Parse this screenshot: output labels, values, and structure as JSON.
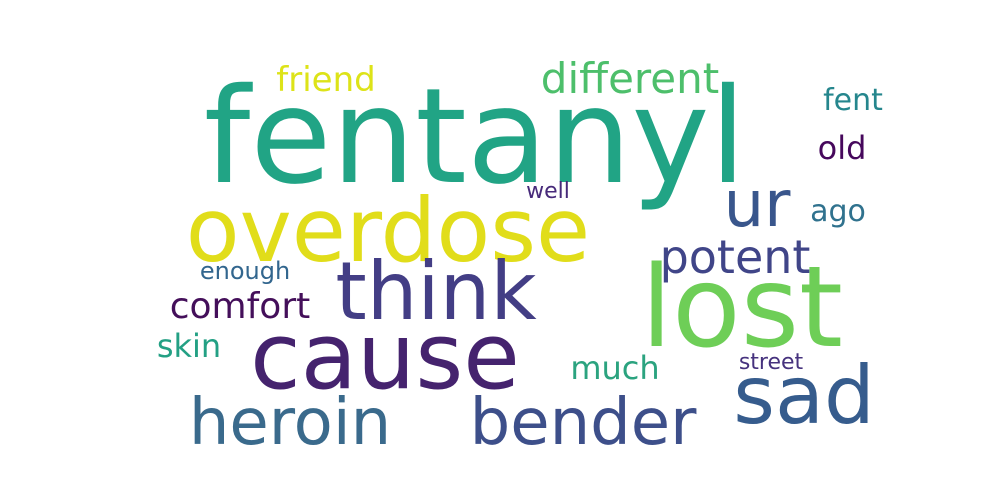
{
  "words": [
    {
      "text": "fentanyl",
      "color": "#21a485"
    },
    {
      "text": "overdose",
      "color": "#e1dd1a"
    },
    {
      "text": "lost",
      "color": "#6ece57"
    },
    {
      "text": "cause",
      "color": "#45236e"
    },
    {
      "text": "think",
      "color": "#433e85"
    },
    {
      "text": "heroin",
      "color": "#3a6a8c"
    },
    {
      "text": "bender",
      "color": "#3d4f8a"
    },
    {
      "text": "sad",
      "color": "#365c8d"
    },
    {
      "text": "ur",
      "color": "#39568c"
    },
    {
      "text": "different",
      "color": "#4dbf6b"
    },
    {
      "text": "potent",
      "color": "#404588"
    },
    {
      "text": "friend",
      "color": "#dde318"
    },
    {
      "text": "comfort",
      "color": "#440f5a"
    },
    {
      "text": "fent",
      "color": "#25868d"
    },
    {
      "text": "old",
      "color": "#46085c"
    },
    {
      "text": "ago",
      "color": "#30728e"
    },
    {
      "text": "skin",
      "color": "#23a084"
    },
    {
      "text": "much",
      "color": "#2ba37f"
    },
    {
      "text": "enough",
      "color": "#32668e"
    },
    {
      "text": "well",
      "color": "#472a7a"
    },
    {
      "text": "street",
      "color": "#46327e"
    }
  ]
}
